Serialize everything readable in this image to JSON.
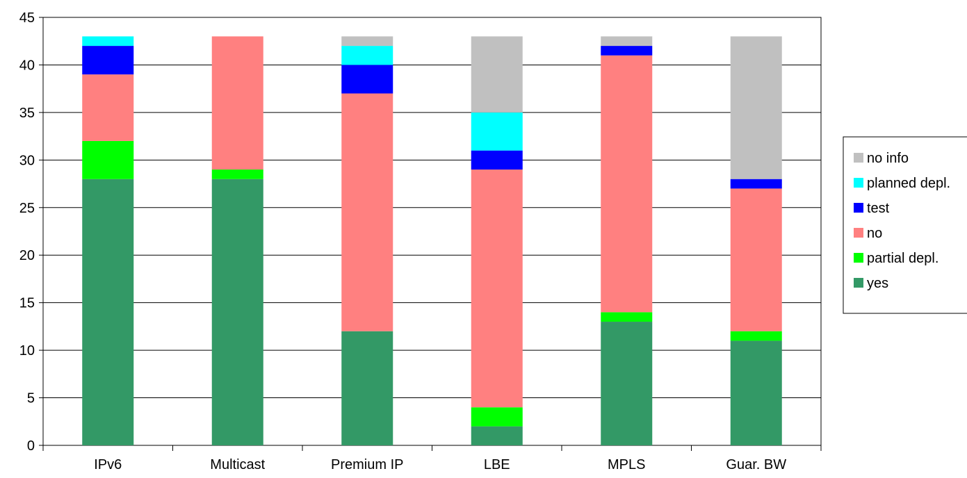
{
  "chart_data": {
    "type": "bar",
    "stacked": true,
    "title": "",
    "xlabel": "",
    "ylabel": "",
    "categories": [
      "IPv6",
      "Multicast",
      "Premium IP",
      "LBE",
      "MPLS",
      "Guar. BW"
    ],
    "ylim": [
      0,
      45
    ],
    "yticks": [
      0,
      5,
      10,
      15,
      20,
      25,
      30,
      35,
      40,
      45
    ],
    "grid": true,
    "legend_position": "right",
    "series": [
      {
        "name": "yes",
        "color": "#339966",
        "values": [
          28,
          28,
          12,
          2,
          13,
          11
        ]
      },
      {
        "name": "partial depl.",
        "color": "#00ff00",
        "values": [
          4,
          1,
          0,
          2,
          1,
          1
        ]
      },
      {
        "name": "no",
        "color": "#ff8080",
        "values": [
          7,
          14,
          25,
          25,
          27,
          15
        ]
      },
      {
        "name": "test",
        "color": "#0000ff",
        "values": [
          3,
          0,
          3,
          2,
          1,
          1
        ]
      },
      {
        "name": "planned depl.",
        "color": "#00ffff",
        "values": [
          1,
          0,
          2,
          4,
          0,
          0
        ]
      },
      {
        "name": "no info",
        "color": "#c0c0c0",
        "values": [
          0,
          0,
          1,
          8,
          1,
          15
        ]
      }
    ]
  }
}
